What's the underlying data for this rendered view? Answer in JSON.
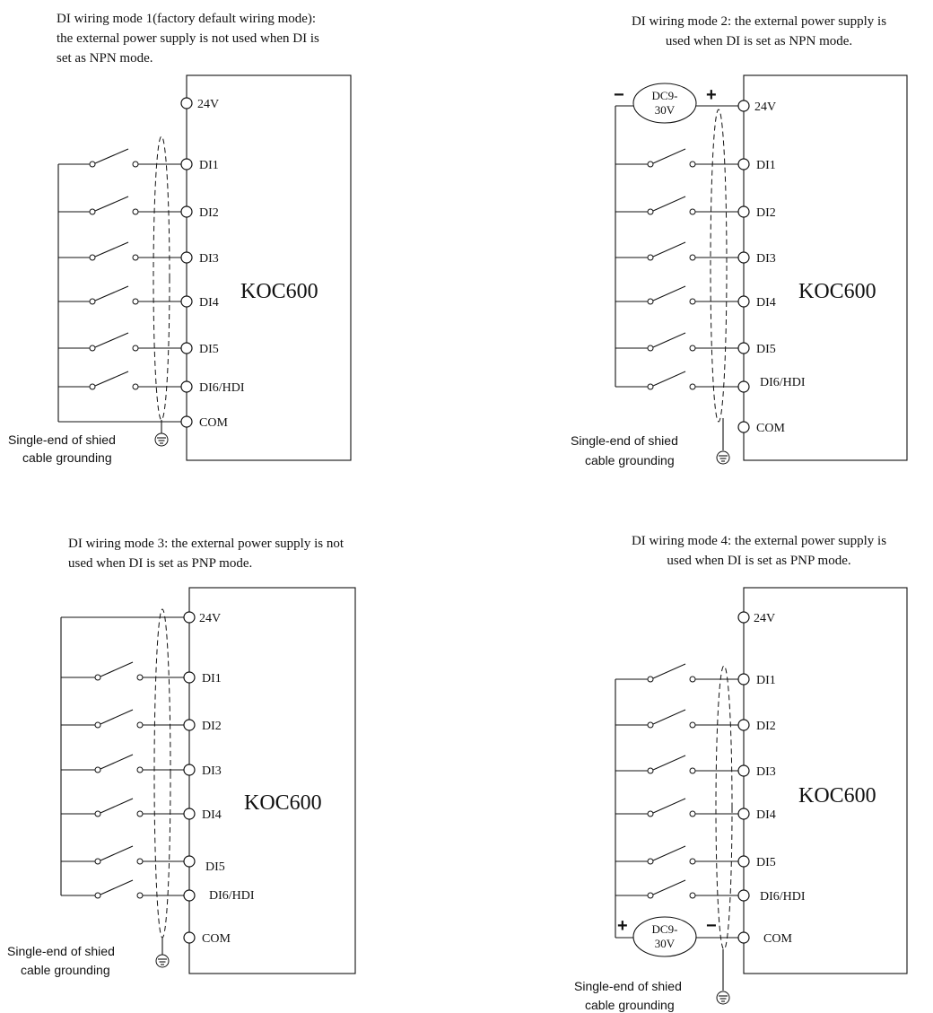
{
  "device_name": "KOC600",
  "panels": [
    {
      "caption_lines": [
        "DI wiring mode 1(factory default wiring mode):",
        "the external power supply is not used when DI is",
        "set as NPN mode."
      ],
      "caption_align": "left",
      "terminals": [
        "24V",
        "DI1",
        "DI2",
        "DI3",
        "DI4",
        "DI5",
        "DI6/HDI",
        "COM"
      ],
      "grounding_note": [
        "Single-end of shied",
        "cable grounding"
      ]
    },
    {
      "caption_lines": [
        "DI wiring mode 2: the external power supply is",
        "used when DI is set as NPN mode."
      ],
      "caption_align": "center",
      "terminals": [
        "24V",
        "DI1",
        "DI2",
        "DI3",
        "DI4",
        "DI5",
        "DI6/HDI",
        "COM"
      ],
      "power_supply": [
        "DC9-",
        "30V"
      ],
      "grounding_note": [
        "Single-end of shied",
        "cable grounding"
      ]
    },
    {
      "caption_lines": [
        "DI wiring mode 3: the external power supply is not",
        "used when DI is set as PNP mode."
      ],
      "caption_align": "left",
      "terminals": [
        "24V",
        "DI1",
        "DI2",
        "DI3",
        "DI4",
        "DI5",
        "DI6/HDI",
        "COM"
      ],
      "grounding_note": [
        "Single-end of shied",
        "cable grounding"
      ]
    },
    {
      "caption_lines": [
        "DI wiring mode 4: the external power supply is",
        "used when DI is set as PNP mode."
      ],
      "caption_align": "center",
      "terminals": [
        "24V",
        "DI1",
        "DI2",
        "DI3",
        "DI4",
        "DI5",
        "DI6/HDI",
        "COM"
      ],
      "power_supply": [
        "DC9-",
        "30V"
      ],
      "grounding_note": [
        "Single-end of shied",
        "cable grounding"
      ]
    }
  ],
  "polarity": {
    "plus": "+",
    "minus": "−"
  }
}
